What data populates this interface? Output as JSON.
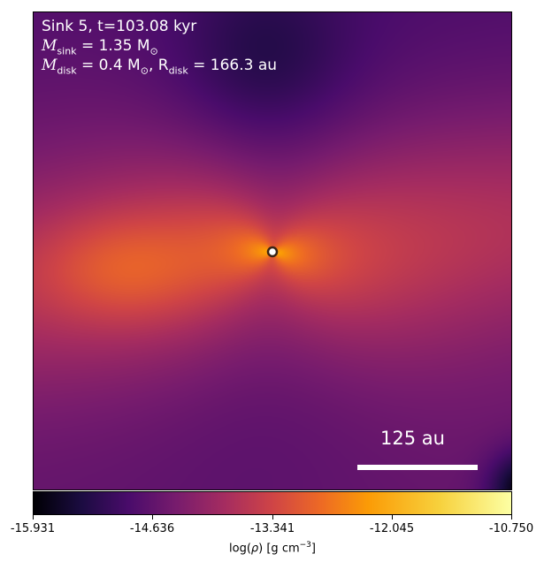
{
  "chart_data": {
    "type": "heatmap",
    "annotations": {
      "line1": "Sink 5, t=103.08 kyr",
      "m_sink_label": "M",
      "m_sink_sub": "sink",
      "m_sink_value": " = 1.35 M",
      "m_sink_unit_sub": "⊙",
      "m_disk_label": "M",
      "m_disk_sub": "disk",
      "m_disk_value": " = 0.4 M",
      "m_disk_unit_sub": "⊙",
      "r_disk_label": ", R",
      "r_disk_sub": "disk",
      "r_disk_value": " = 166.3 au"
    },
    "scale_bar": {
      "label": "125 au",
      "length_au": 125
    },
    "sink_marker": {
      "x_frac": 0.5,
      "y_frac": 0.5
    },
    "colorbar": {
      "colormap": "inferno",
      "range": [
        -15.931,
        -10.75
      ],
      "tick_labels": [
        "-15.931",
        "-14.636",
        "-13.341",
        "-12.045",
        "-10.750"
      ],
      "tick_values": [
        -15.931,
        -14.636,
        -13.341,
        -12.045,
        -10.75
      ],
      "label_prefix": "log(",
      "label_rho": "ρ",
      "label_mid": ") [g cm",
      "label_exp": "−3",
      "label_suffix": "]"
    }
  }
}
